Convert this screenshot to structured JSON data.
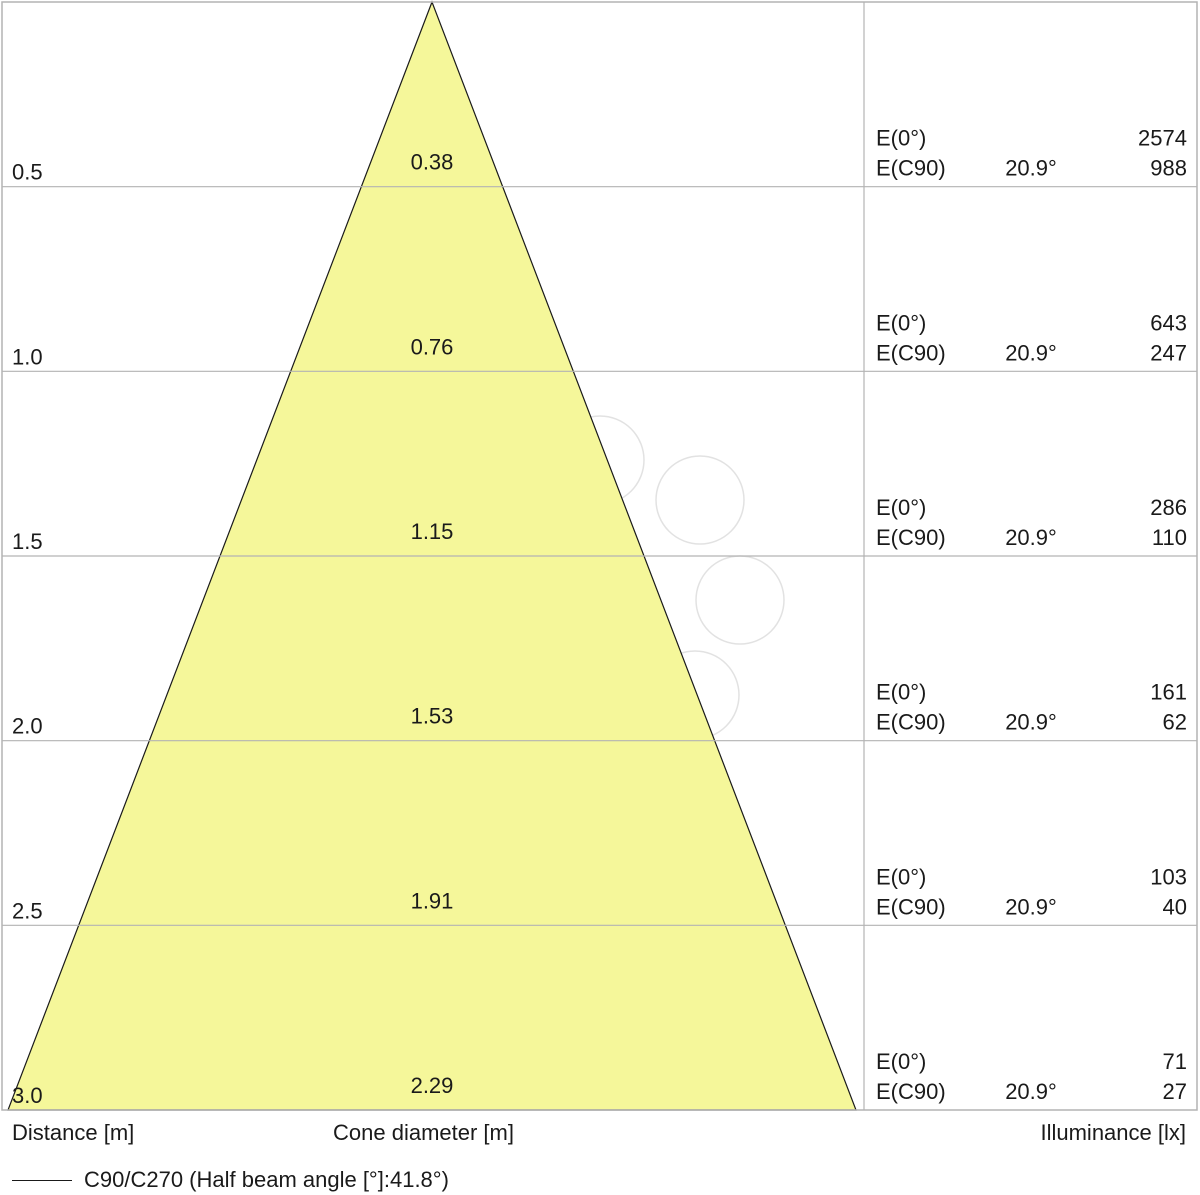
{
  "chart_data": {
    "type": "cone diagram",
    "xlabel": "Distance [m]",
    "center_label": "Cone diameter [m]",
    "right_label": "Illuminance [lx]",
    "legend": {
      "label_prefix": "C90/C270 (Half beam angle [°]: ",
      "half_beam_angle": "41.8°",
      "label_suffix": ")"
    },
    "colors": {
      "cone_fill": "#f5f79a",
      "grid": "#b3b3b3",
      "text": "#1a1a1a",
      "watermark": "#e2e2e2"
    },
    "rows": [
      {
        "distance": "0.5",
        "diameter": "0.38",
        "e0_label": "E(0°)",
        "e0": "2574",
        "ec90_label": "E(C90)",
        "angle": "20.9°",
        "ec90": "988"
      },
      {
        "distance": "1.0",
        "diameter": "0.76",
        "e0_label": "E(0°)",
        "e0": "643",
        "ec90_label": "E(C90)",
        "angle": "20.9°",
        "ec90": "247"
      },
      {
        "distance": "1.5",
        "diameter": "1.15",
        "e0_label": "E(0°)",
        "e0": "286",
        "ec90_label": "E(C90)",
        "angle": "20.9°",
        "ec90": "110"
      },
      {
        "distance": "2.0",
        "diameter": "1.53",
        "e0_label": "E(0°)",
        "e0": "161",
        "ec90_label": "E(C90)",
        "angle": "20.9°",
        "ec90": "62"
      },
      {
        "distance": "2.5",
        "diameter": "1.91",
        "e0_label": "E(0°)",
        "e0": "103",
        "ec90_label": "E(C90)",
        "angle": "20.9°",
        "ec90": "40"
      },
      {
        "distance": "3.0",
        "diameter": "2.29",
        "e0_label": "E(0°)",
        "e0": "71",
        "ec90_label": "E(C90)",
        "angle": "20.9°",
        "ec90": "27"
      }
    ]
  }
}
